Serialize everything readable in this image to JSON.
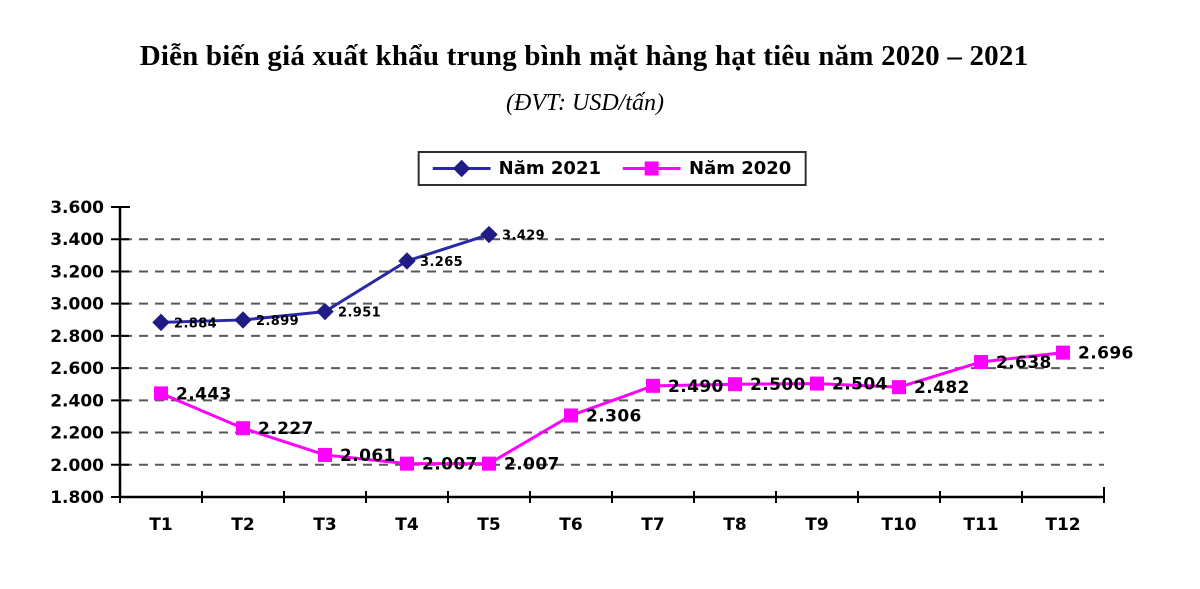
{
  "chart_data": {
    "type": "line",
    "title": "Diễn biến giá xuất khẩu trung bình mặt hàng hạt tiêu năm 2020 – 2021",
    "subtitle": "(ĐVT: USD/tấn)",
    "unit": "USD/tấn",
    "categories": [
      "T1",
      "T2",
      "T3",
      "T4",
      "T5",
      "T6",
      "T7",
      "T8",
      "T9",
      "T10",
      "T11",
      "T12"
    ],
    "series": [
      {
        "name": "Năm 2021",
        "marker": "diamond",
        "color": "#2b28a8",
        "marker_color": "#1f1c86",
        "label_font_px": 13,
        "label_dx": 13,
        "label_dy": 5,
        "values": [
          2884,
          2899,
          2951,
          3265,
          3429,
          null,
          null,
          null,
          null,
          null,
          null,
          null
        ],
        "value_labels": [
          "2.884",
          "2.899",
          "2.951",
          "3.265",
          "3.429",
          null,
          null,
          null,
          null,
          null,
          null,
          null
        ]
      },
      {
        "name": "Năm 2020",
        "marker": "square",
        "color": "#ff00ff",
        "marker_color": "#ff00ff",
        "label_font_px": 17,
        "label_dx": 15,
        "label_dy": 6,
        "values": [
          2443,
          2227,
          2061,
          2007,
          2007,
          2306,
          2490,
          2500,
          2504,
          2482,
          2638,
          2696
        ],
        "value_labels": [
          "2.443",
          "2.227",
          "2.061",
          "2.007",
          "2.007",
          "2.306",
          "2.490",
          "2.500",
          "2.504",
          "2.482",
          "2.638",
          "2.696"
        ]
      }
    ],
    "ylim": [
      1800,
      3600
    ],
    "ytick_step": 200,
    "y_tick_labels": [
      "1.800",
      "2.000",
      "2.200",
      "2.400",
      "2.600",
      "2.800",
      "3.000",
      "3.200",
      "3.400",
      "3.600"
    ],
    "number_format": "thousands-dot",
    "grid": "horizontal-dashed",
    "gridline_color": "#595959",
    "axis_color": "#000000",
    "legend_position": "top-center",
    "background_color": "#ffffff"
  }
}
